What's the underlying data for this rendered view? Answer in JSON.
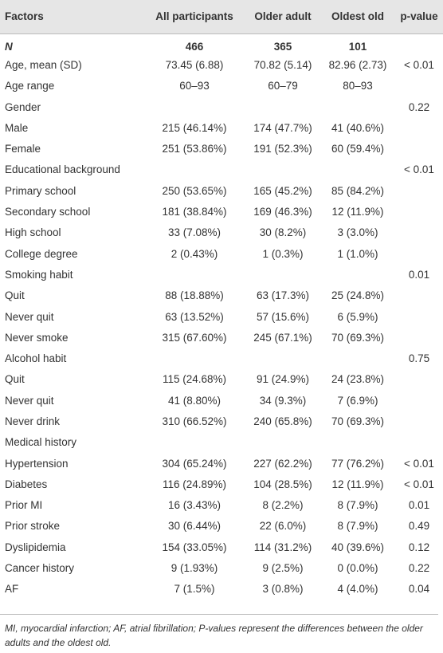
{
  "table": {
    "header": [
      "Factors",
      "All participants",
      "Older adult",
      "Oldest old",
      "p-value"
    ],
    "rows": [
      [
        "N",
        "466",
        "365",
        "101",
        null
      ],
      [
        "Age, mean (SD)",
        "73.45 (6.88)",
        "70.82 (5.14)",
        "82.96 (2.73)",
        "< 0.01"
      ],
      [
        "Age range",
        "60–93",
        "60–79",
        "80–93",
        null
      ],
      [
        "Gender",
        null,
        null,
        null,
        "0.22"
      ],
      [
        "Male",
        "215 (46.14%)",
        "174 (47.7%)",
        "41 (40.6%)",
        null
      ],
      [
        "Female",
        "251 (53.86%)",
        "191 (52.3%)",
        "60 (59.4%)",
        null
      ],
      [
        "Educational background",
        null,
        null,
        null,
        "< 0.01"
      ],
      [
        "Primary school",
        "250 (53.65%)",
        "165 (45.2%)",
        "85 (84.2%)",
        null
      ],
      [
        "Secondary school",
        "181 (38.84%)",
        "169 (46.3%)",
        "12 (11.9%)",
        null
      ],
      [
        "High school",
        "33 (7.08%)",
        "30 (8.2%)",
        "3 (3.0%)",
        null
      ],
      [
        "College degree",
        "2 (0.43%)",
        "1 (0.3%)",
        "1 (1.0%)",
        null
      ],
      [
        "Smoking habit",
        null,
        null,
        null,
        "0.01"
      ],
      [
        "Quit",
        "88 (18.88%)",
        "63 (17.3%)",
        "25 (24.8%)",
        null
      ],
      [
        "Never quit",
        "63 (13.52%)",
        "57 (15.6%)",
        "6 (5.9%)",
        null
      ],
      [
        "Never smoke",
        "315 (67.60%)",
        "245 (67.1%)",
        "70 (69.3%)",
        null
      ],
      [
        "Alcohol habit",
        null,
        null,
        null,
        "0.75"
      ],
      [
        "Quit",
        "115 (24.68%)",
        "91 (24.9%)",
        "24 (23.8%)",
        null
      ],
      [
        "Never quit",
        "41 (8.80%)",
        "34 (9.3%)",
        "7 (6.9%)",
        null
      ],
      [
        "Never drink",
        "310 (66.52%)",
        "240 (65.8%)",
        "70 (69.3%)",
        null
      ],
      [
        "Medical history",
        null,
        null,
        null,
        null
      ],
      [
        "Hypertension",
        "304 (65.24%)",
        "227 (62.2%)",
        "77 (76.2%)",
        "< 0.01"
      ],
      [
        "Diabetes",
        "116 (24.89%)",
        "104 (28.5%)",
        "12 (11.9%)",
        "< 0.01"
      ],
      [
        "Prior MI",
        "16 (3.43%)",
        "8 (2.2%)",
        "8 (7.9%)",
        "0.01"
      ],
      [
        "Prior stroke",
        "30 (6.44%)",
        "22 (6.0%)",
        "8 (7.9%)",
        "0.49"
      ],
      [
        "Dyslipidemia",
        "154 (33.05%)",
        "114 (31.2%)",
        "40 (39.6%)",
        "0.12"
      ],
      [
        "Cancer history",
        "9 (1.93%)",
        "9 (2.5%)",
        "0 (0.0%)",
        "0.22"
      ],
      [
        "AF",
        "7 (1.5%)",
        "3 (0.8%)",
        "4 (4.0%)",
        "0.04"
      ]
    ]
  },
  "footnote": "MI, myocardial infarction; AF, atrial fibrillation; P-values represent the differences between the older adults and the oldest old."
}
